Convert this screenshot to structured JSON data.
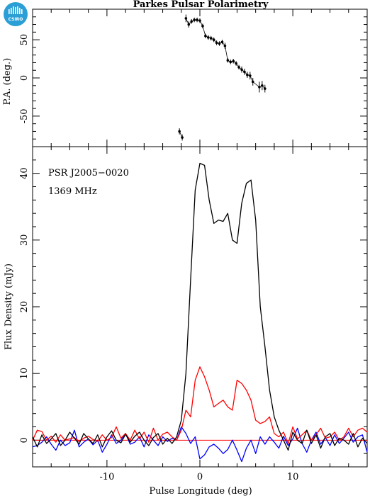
{
  "title": "Parkes Pulsar Polarimetry",
  "logo_text": "CSIRO",
  "colors": {
    "total": "#000000",
    "linear": "#ff0000",
    "circular": "#0000ff",
    "logo": "#2a9fd6"
  },
  "chart_data": [
    {
      "type": "scatter",
      "panel": "pa",
      "ylabel": "P.A. (deg.)",
      "xlim": [
        -18,
        18
      ],
      "ylim": [
        -90,
        90
      ],
      "y_ticks": [
        -50,
        0,
        50
      ],
      "x_ticks": [
        -10,
        0,
        10
      ],
      "error_bars": true,
      "points": {
        "x": [
          -2.2,
          -1.9,
          -1.5,
          -1.2,
          -0.9,
          -0.6,
          -0.3,
          0.0,
          0.3,
          0.6,
          0.9,
          1.2,
          1.5,
          1.8,
          2.1,
          2.4,
          2.7,
          3.0,
          3.3,
          3.6,
          3.9,
          4.2,
          4.5,
          4.8,
          5.1,
          5.4,
          5.7,
          6.4,
          6.7,
          7.0
        ],
        "y": [
          -70,
          -78,
          78,
          70,
          74,
          76,
          76,
          75,
          68,
          55,
          53,
          52,
          50,
          46,
          45,
          47,
          42,
          23,
          21,
          22,
          19,
          14,
          11,
          8,
          4,
          3,
          -5,
          -12,
          -10,
          -14
        ],
        "err": [
          4,
          4,
          5,
          4,
          3,
          3,
          3,
          3,
          3,
          3,
          3,
          3,
          3,
          3,
          3,
          3,
          4,
          3,
          3,
          3,
          3,
          3,
          4,
          4,
          4,
          5,
          5,
          7,
          6,
          5
        ]
      }
    },
    {
      "type": "line",
      "panel": "profile",
      "annotations": [
        "PSR J2005−0020",
        "1369 MHz"
      ],
      "xlabel": "Pulse Longitude (deg)",
      "ylabel": "Flux Density (mJy)",
      "xlim": [
        -18,
        18
      ],
      "ylim": [
        -4,
        44
      ],
      "x_ticks": [
        -10,
        0,
        10
      ],
      "y_ticks": [
        0,
        10,
        20,
        30,
        40
      ],
      "x": [
        -18.0,
        -17.5,
        -17.0,
        -16.5,
        -16.0,
        -15.5,
        -15.0,
        -14.5,
        -14.0,
        -13.5,
        -13.0,
        -12.5,
        -12.0,
        -11.5,
        -11.0,
        -10.5,
        -10.0,
        -9.5,
        -9.0,
        -8.5,
        -8.0,
        -7.5,
        -7.0,
        -6.5,
        -6.0,
        -5.5,
        -5.0,
        -4.5,
        -4.0,
        -3.5,
        -3.0,
        -2.5,
        -2.0,
        -1.5,
        -1.0,
        -0.5,
        0.0,
        0.5,
        1.0,
        1.5,
        2.0,
        2.5,
        3.0,
        3.5,
        4.0,
        4.5,
        5.0,
        5.5,
        6.0,
        6.5,
        7.0,
        7.5,
        8.0,
        8.5,
        9.0,
        9.5,
        10.0,
        10.5,
        11.0,
        11.5,
        12.0,
        12.5,
        13.0,
        13.5,
        14.0,
        14.5,
        15.0,
        15.5,
        16.0,
        16.5,
        17.0,
        17.5,
        18.0
      ],
      "series": [
        {
          "color_key": "total",
          "values": [
            0.5,
            -1.0,
            0.8,
            -0.5,
            0.2,
            1.0,
            -0.8,
            0.0,
            1.2,
            0.3,
            -0.6,
            1.0,
            0.2,
            -0.5,
            0.8,
            -1.0,
            0.5,
            1.4,
            0.0,
            -0.4,
            0.9,
            -0.3,
            0.6,
            1.2,
            0.0,
            -0.8,
            0.4,
            1.0,
            -0.6,
            0.3,
            -0.5,
            0.5,
            3.0,
            10.0,
            24.0,
            37.5,
            41.5,
            41.2,
            36.0,
            32.5,
            33.0,
            32.8,
            34.0,
            30.0,
            29.5,
            35.5,
            38.5,
            39.0,
            33.0,
            20.0,
            14.0,
            7.5,
            3.5,
            1.5,
            0.0,
            -1.5,
            1.2,
            0.0,
            -0.5,
            1.5,
            -0.5,
            0.8,
            -1.2,
            0.5,
            1.0,
            -0.8,
            0.3,
            0.0,
            -0.6,
            1.0,
            -1.0,
            0.3,
            -0.5
          ]
        },
        {
          "color_key": "linear",
          "values": [
            0.0,
            1.5,
            1.3,
            0.0,
            0.6,
            -0.3,
            0.8,
            0.0,
            0.2,
            0.4,
            -0.2,
            0.3,
            0.6,
            0.1,
            -0.2,
            0.8,
            0.0,
            0.4,
            2.0,
            0.3,
            1.0,
            0.0,
            1.5,
            0.2,
            1.2,
            -0.3,
            1.8,
            0.0,
            0.9,
            1.2,
            0.5,
            0.0,
            1.5,
            4.5,
            3.5,
            9.0,
            11.0,
            9.5,
            7.5,
            5.0,
            5.5,
            6.0,
            5.0,
            4.5,
            9.0,
            8.5,
            7.5,
            6.0,
            3.0,
            2.5,
            2.8,
            3.5,
            1.0,
            0.5,
            1.2,
            -0.5,
            2.0,
            0.2,
            0.8,
            1.5,
            0.0,
            0.8,
            1.8,
            0.3,
            0.5,
            1.2,
            0.0,
            0.5,
            1.8,
            0.5,
            1.5,
            1.8,
            1.2
          ]
        },
        {
          "color_key": "circular",
          "values": [
            -1.0,
            -0.8,
            -0.3,
            0.5,
            -0.6,
            -1.5,
            0.0,
            -0.8,
            -0.4,
            1.5,
            -1.0,
            -0.3,
            0.2,
            -0.7,
            0.0,
            -1.8,
            -0.6,
            0.8,
            -0.5,
            0.0,
            1.0,
            -0.6,
            -0.3,
            0.5,
            -1.0,
            0.8,
            0.0,
            -0.8,
            0.5,
            -0.2,
            0.3,
            0.0,
            2.0,
            1.0,
            -0.5,
            0.5,
            -2.8,
            -2.2,
            -1.0,
            -0.6,
            -1.2,
            -2.0,
            -1.4,
            0.0,
            -1.5,
            -3.2,
            -1.2,
            0.0,
            -2.0,
            0.5,
            -0.6,
            0.5,
            -0.3,
            -1.2,
            0.6,
            -0.8,
            0.2,
            1.8,
            -0.5,
            -1.8,
            0.0,
            1.2,
            -0.6,
            0.4,
            -0.8,
            0.8,
            -0.5,
            0.3,
            1.2,
            -0.3,
            0.5,
            0.8,
            -1.8
          ]
        }
      ]
    }
  ]
}
